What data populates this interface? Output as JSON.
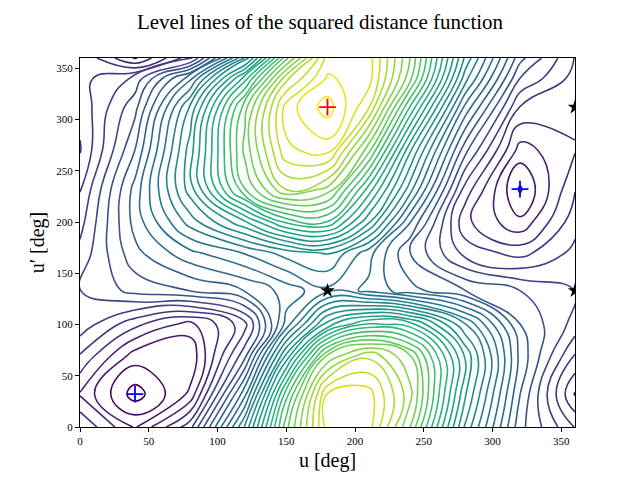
{
  "chart_data": {
    "type": "contour",
    "title": "Level lines of the squared distance function",
    "x_label": "u [deg]",
    "y_label": "u′ [deg]",
    "color": "viridis",
    "grid": false,
    "xlim": [
      0,
      360
    ],
    "ylim": [
      0,
      360
    ],
    "xticks": [
      0,
      50,
      100,
      150,
      200,
      250,
      300,
      350
    ],
    "yticks": [
      0,
      50,
      100,
      150,
      200,
      250,
      300,
      350
    ],
    "x": [
      0,
      40,
      80,
      120,
      150,
      180,
      210,
      240,
      280,
      320,
      360
    ],
    "y": [
      0,
      32,
      70,
      100,
      133,
      170,
      200,
      232,
      270,
      312,
      340,
      360
    ],
    "z": [
      [
        1.6,
        0.7,
        1.8,
        4.6,
        7.4,
        9.4,
        9.4,
        7.8,
        4.8,
        2.6,
        1.6
      ],
      [
        1.0,
        0.0,
        0.8,
        3.6,
        6.8,
        9.3,
        9.4,
        8.2,
        5.2,
        2.8,
        1.0
      ],
      [
        1.6,
        0.6,
        0.5,
        2.4,
        5.2,
        7.8,
        8.6,
        7.8,
        5.4,
        3.0,
        1.6
      ],
      [
        2.1,
        1.4,
        0.9,
        1.8,
        3.8,
        5.6,
        6.4,
        6.2,
        4.6,
        2.8,
        2.1
      ],
      [
        2.2,
        2.6,
        2.8,
        3.1,
        3.5,
        3.9,
        3.6,
        3.2,
        2.8,
        2.5,
        2.2
      ],
      [
        2.0,
        3.0,
        3.6,
        4.0,
        4.4,
        4.6,
        3.8,
        2.8,
        1.8,
        1.5,
        2.0
      ],
      [
        1.8,
        3.2,
        4.4,
        5.4,
        6.4,
        6.6,
        5.2,
        3.4,
        1.4,
        0.8,
        1.8
      ],
      [
        1.6,
        3.2,
        5.0,
        7.2,
        8.4,
        8.0,
        6.2,
        4.4,
        1.8,
        0.4,
        1.6
      ],
      [
        1.3,
        2.8,
        5.0,
        7.6,
        9.2,
        9.4,
        7.6,
        5.2,
        2.6,
        0.9,
        1.3
      ],
      [
        1.4,
        2.4,
        4.6,
        7.4,
        9.4,
        10.0,
        9.0,
        6.6,
        3.6,
        1.6,
        1.4
      ],
      [
        1.5,
        2.0,
        3.6,
        6.2,
        8.6,
        9.6,
        9.4,
        7.6,
        4.4,
        2.2,
        1.5
      ],
      [
        1.6,
        0.7,
        1.8,
        4.6,
        7.4,
        9.4,
        9.4,
        7.8,
        4.8,
        2.6,
        1.6
      ]
    ],
    "points": [
      {
        "color": "#ff0000",
        "marker": "plus",
        "x": [
          180
        ],
        "y": [
          312
        ]
      },
      {
        "color": "#0000ff",
        "marker": "plus",
        "x": [
          40,
          320
        ],
        "y": [
          32,
          232
        ]
      },
      {
        "color": "#000000",
        "marker": "star",
        "x": [
          180,
          360,
          360
        ],
        "y": [
          133,
          133,
          312
        ]
      }
    ]
  }
}
